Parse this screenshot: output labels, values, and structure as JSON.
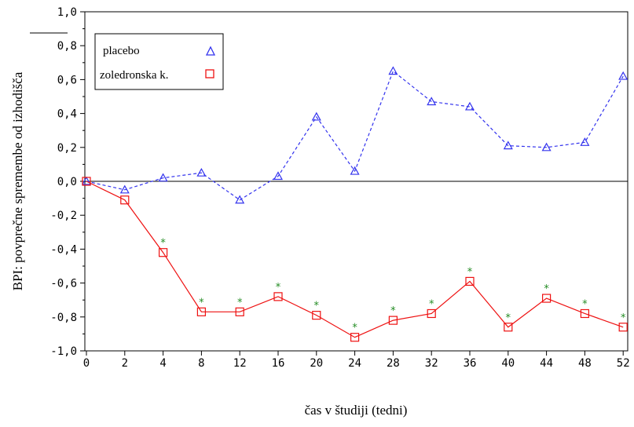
{
  "chart_data": {
    "type": "line",
    "title": "",
    "xlabel": "čas v študiji (tedni)",
    "ylabel": "BPI: povprečne spremembe od izhodišča",
    "categories": [
      "0",
      "2",
      "4",
      "8",
      "12",
      "16",
      "20",
      "24",
      "28",
      "32",
      "36",
      "40",
      "44",
      "48",
      "52"
    ],
    "yticks": [
      "1,0",
      "0,8",
      "0,6",
      "0,4",
      "0,2",
      "0,0",
      "-0,2",
      "-0,4",
      "-0,6",
      "-0,8",
      "-1,0"
    ],
    "ylim": [
      -1.0,
      1.0
    ],
    "legend_position": "top-left",
    "series": [
      {
        "name": "placebo",
        "marker": "triangle",
        "line_style": "dashed",
        "color": "#3333ee",
        "values": [
          0.0,
          -0.05,
          0.02,
          0.05,
          -0.11,
          0.03,
          0.38,
          0.06,
          0.65,
          0.47,
          0.44,
          0.21,
          0.2,
          0.23,
          0.62
        ]
      },
      {
        "name": "zoledronska k.",
        "marker": "square",
        "line_style": "solid",
        "color": "#ee1111",
        "values": [
          0.0,
          -0.11,
          -0.42,
          -0.77,
          -0.77,
          -0.68,
          -0.79,
          -0.92,
          -0.82,
          -0.78,
          -0.59,
          -0.86,
          -0.69,
          -0.78,
          -0.86
        ]
      }
    ],
    "significance_marker": "*",
    "significance_color": "#228b22",
    "significant_indices": [
      2,
      3,
      4,
      5,
      6,
      7,
      8,
      9,
      10,
      11,
      12,
      13,
      14
    ]
  }
}
